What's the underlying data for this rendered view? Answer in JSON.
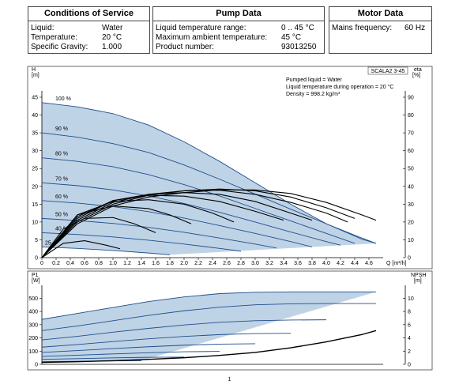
{
  "tables": {
    "service": {
      "title": "Conditions of Service",
      "rows": [
        {
          "label": "Liquid:",
          "value": "Water"
        },
        {
          "label": "Temperature:",
          "value": "20 °C"
        },
        {
          "label": "Specific Gravity:",
          "value": "1.000"
        }
      ]
    },
    "pump": {
      "title": "Pump Data",
      "rows": [
        {
          "label": "Liquid temperature range:",
          "value": "0 .. 45 °C"
        },
        {
          "label": "Maximum ambient temperature:",
          "value": "45 °C"
        },
        {
          "label": "Product number:",
          "value": "93013250"
        }
      ]
    },
    "motor": {
      "title": "Motor Data",
      "rows": [
        {
          "label": "Mains frequency:",
          "value": "60 Hz"
        }
      ]
    }
  },
  "page_number": "1",
  "chart_data": [
    {
      "type": "line",
      "model_label": "SCALA2 3-45",
      "notes": [
        "Pumped liquid = Water",
        "Liquid temperature during operation = 20 °C",
        "Density = 998.2 kg/m³"
      ],
      "ylabel": "H\n[m]",
      "y2label": "eta\n[%]",
      "xlabel": "Q [m³/h]",
      "xlim": [
        0,
        4.8
      ],
      "ylim": [
        0,
        45
      ],
      "y2lim": [
        0,
        90
      ],
      "x_ticks": [
        0,
        0.2,
        0.4,
        0.6,
        0.8,
        1.0,
        1.2,
        1.4,
        1.6,
        1.8,
        2.0,
        2.2,
        2.4,
        2.6,
        2.8,
        3.0,
        3.2,
        3.4,
        3.6,
        3.8,
        4.0,
        4.2,
        4.4,
        4.6
      ],
      "x_tick_labels": [
        "0",
        "0.2",
        "0.4",
        "0.6",
        "0.8",
        "1.0",
        "1.2",
        "1.4",
        "1.6",
        "1.8",
        "2.0",
        "2.2",
        "2.4",
        "2.6",
        "2.8",
        "3.0",
        "3.2",
        "3.4",
        "3.6",
        "3.8",
        "4.0",
        "4.2",
        "4.4",
        "4.6"
      ],
      "y_ticks": [
        0,
        5,
        10,
        15,
        20,
        25,
        30,
        35,
        40,
        45
      ],
      "y2_ticks": [
        0,
        10,
        20,
        30,
        40,
        50,
        60,
        70,
        80,
        90
      ],
      "colors": {
        "curve": "#1f4e8c",
        "fill": "#bfd3e6",
        "efficiency": "#000000"
      },
      "series": [
        {
          "name": "100 %",
          "x": [
            0,
            0.5,
            1.0,
            1.5,
            2.0,
            2.5,
            3.0,
            3.5,
            4.0,
            4.5,
            4.7
          ],
          "values": [
            43.5,
            42.3,
            40.4,
            37.2,
            32.5,
            27.0,
            21.0,
            15.0,
            9.5,
            5.2,
            4.0
          ]
        },
        {
          "name": "90 %",
          "x": [
            0,
            0.5,
            1.0,
            1.5,
            2.0,
            2.5,
            3.0,
            3.5,
            4.0,
            4.5,
            4.7
          ],
          "values": [
            35.0,
            33.8,
            32.0,
            29.5,
            26.0,
            22.0,
            17.8,
            13.6,
            9.5,
            5.5,
            4.0
          ]
        },
        {
          "name": "80 %",
          "x": [
            0,
            0.5,
            1.0,
            1.5,
            2.0,
            2.5,
            3.0,
            3.5,
            4.0,
            4.4
          ],
          "values": [
            28.0,
            27.0,
            25.5,
            23.3,
            20.5,
            17.3,
            13.8,
            10.3,
            6.8,
            4.0
          ]
        },
        {
          "name": "70 %",
          "x": [
            0,
            0.5,
            1.0,
            1.5,
            2.0,
            2.5,
            3.0,
            3.5,
            4.0,
            4.2
          ],
          "values": [
            21.0,
            20.2,
            19.0,
            17.3,
            15.2,
            12.7,
            10.0,
            7.2,
            4.5,
            3.5
          ]
        },
        {
          "name": "60 %",
          "x": [
            0,
            0.5,
            1.0,
            1.5,
            2.0,
            2.5,
            3.0,
            3.5,
            3.8
          ],
          "values": [
            16.0,
            15.3,
            14.3,
            12.9,
            11.1,
            9.0,
            6.8,
            4.5,
            3.0
          ]
        },
        {
          "name": "50 %",
          "x": [
            0,
            0.5,
            1.0,
            1.5,
            2.0,
            2.5,
            3.0,
            3.3
          ],
          "values": [
            11.0,
            10.4,
            9.6,
            8.5,
            7.1,
            5.5,
            3.8,
            2.7
          ]
        },
        {
          "name": "40 %",
          "x": [
            0,
            0.5,
            1.0,
            1.5,
            2.0,
            2.5,
            2.8
          ],
          "values": [
            7.0,
            6.5,
            5.8,
            4.9,
            3.8,
            2.6,
            1.8
          ]
        },
        {
          "name": "25",
          "x": [
            0,
            0.5,
            1.0,
            1.5,
            1.8
          ],
          "values": [
            3.0,
            2.6,
            2.0,
            1.3,
            0.8
          ]
        }
      ],
      "efficiency_series": [
        {
          "x": [
            0,
            0.5,
            1.0,
            1.5,
            2.0,
            2.5,
            3.0,
            3.5,
            4.0,
            4.5,
            4.7
          ],
          "values": [
            0,
            19,
            29,
            34,
            36.5,
            38,
            38,
            36,
            31,
            24,
            21
          ]
        },
        {
          "x": [
            0,
            0.5,
            1.0,
            1.5,
            2.0,
            2.5,
            3.0,
            3.5,
            4.0,
            4.4
          ],
          "values": [
            0,
            20,
            30,
            35,
            37.5,
            38.5,
            37.5,
            34,
            28,
            22
          ]
        },
        {
          "x": [
            0,
            0.5,
            1.0,
            1.5,
            2.0,
            2.5,
            3.0,
            3.5,
            4.0,
            4.3
          ],
          "values": [
            0,
            21,
            31,
            35.5,
            37.5,
            37.8,
            35.5,
            31,
            25,
            20
          ]
        },
        {
          "x": [
            0,
            0.5,
            1.0,
            1.5,
            2.0,
            2.5,
            3.0,
            3.5,
            3.8
          ],
          "values": [
            0,
            22,
            32,
            35.5,
            36.5,
            35.5,
            31.5,
            25,
            21
          ]
        },
        {
          "x": [
            0,
            0.5,
            1.0,
            1.5,
            2.0,
            2.5,
            3.0,
            3.4
          ],
          "values": [
            0,
            23,
            32,
            35,
            34.5,
            31.5,
            26,
            21
          ]
        },
        {
          "x": [
            0,
            0.5,
            1.0,
            1.5,
            2.0,
            2.4,
            2.7
          ],
          "values": [
            0,
            24,
            31.5,
            32.5,
            30,
            25,
            20
          ]
        },
        {
          "x": [
            0,
            0.5,
            1.0,
            1.5,
            1.8,
            2.1
          ],
          "values": [
            0,
            24,
            29,
            27.5,
            24,
            19
          ]
        },
        {
          "x": [
            0,
            0.3,
            0.6,
            1.0,
            1.3,
            1.6
          ],
          "values": [
            0,
            16,
            22,
            22.5,
            19,
            14
          ]
        },
        {
          "x": [
            0,
            0.3,
            0.6,
            0.9,
            1.1
          ],
          "values": [
            0,
            8,
            9.5,
            7,
            5
          ]
        }
      ]
    },
    {
      "type": "line",
      "ylabel": "P1\n[W]",
      "y2label": "NPSH\n[m]",
      "xlim": [
        0,
        4.8
      ],
      "ylim": [
        0,
        550
      ],
      "y2lim": [
        0,
        11
      ],
      "y_ticks": [
        0,
        100,
        200,
        300,
        400,
        500
      ],
      "y2_ticks": [
        0,
        2,
        4,
        6,
        8,
        10
      ],
      "series": [
        {
          "x": [
            0,
            0.5,
            1.0,
            1.5,
            2.0,
            2.5,
            3.0,
            3.5,
            4.0,
            4.5,
            4.7
          ],
          "values": [
            340,
            385,
            430,
            475,
            510,
            535,
            545,
            548,
            548,
            548,
            548
          ]
        },
        {
          "x": [
            0,
            0.5,
            1.0,
            1.5,
            2.0,
            2.5,
            3.0,
            3.5,
            4.0,
            4.5,
            4.7
          ],
          "values": [
            255,
            290,
            330,
            370,
            405,
            432,
            450,
            458,
            460,
            460,
            460
          ]
        },
        {
          "x": [
            0,
            0.5,
            1.0,
            1.5,
            2.0,
            2.5,
            3.0,
            3.5,
            4.0
          ],
          "values": [
            185,
            212,
            243,
            272,
            298,
            318,
            330,
            335,
            337
          ]
        },
        {
          "x": [
            0,
            0.5,
            1.0,
            1.5,
            2.0,
            2.5,
            3.0,
            3.5
          ],
          "values": [
            130,
            150,
            172,
            193,
            211,
            225,
            233,
            235
          ]
        },
        {
          "x": [
            0,
            0.5,
            1.0,
            1.5,
            2.0,
            2.5,
            3.0
          ],
          "values": [
            90,
            104,
            119,
            133,
            145,
            153,
            156
          ]
        },
        {
          "x": [
            0,
            0.5,
            1.0,
            1.5,
            2.0,
            2.5
          ],
          "values": [
            60,
            69,
            79,
            88,
            95,
            98
          ]
        },
        {
          "x": [
            0,
            0.5,
            1.0,
            1.5,
            2.0
          ],
          "values": [
            38,
            43,
            49,
            53,
            55
          ]
        },
        {
          "x": [
            0,
            0.5,
            1.0,
            1.4
          ],
          "values": [
            20,
            23,
            26,
            27
          ]
        }
      ],
      "npsh_series": {
        "x": [
          0,
          0.5,
          1.0,
          1.5,
          2.0,
          2.5,
          3.0,
          3.5,
          4.0,
          4.5,
          4.7
        ],
        "values": [
          0.3,
          0.4,
          0.55,
          0.75,
          1.0,
          1.35,
          1.8,
          2.5,
          3.4,
          4.5,
          5.1
        ]
      }
    }
  ]
}
